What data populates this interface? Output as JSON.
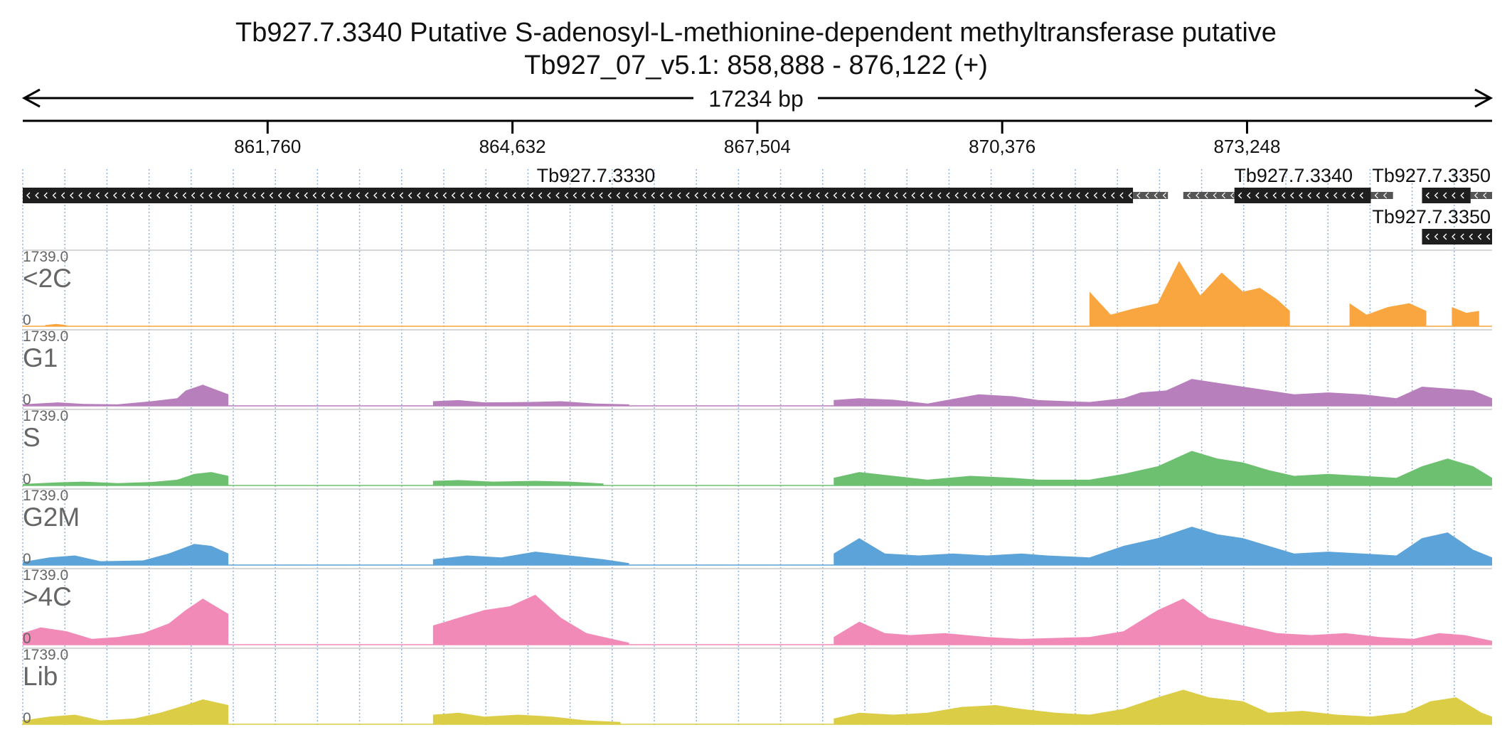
{
  "header": {
    "title": "Tb927.7.3340  Putative S-adenosyl-L-methionine-dependent methyltransferase  putative",
    "region": "Tb927_07_v5.1: 858,888 - 876,122 (+)",
    "span_label": "17234 bp"
  },
  "colors": {
    "gene_block": "#1e1e1e",
    "utr_block": "#555555",
    "grid_line": "#8fb3d9",
    "axis": "#000000"
  },
  "chart_data": {
    "type": "area",
    "region": {
      "chromosome": "Tb927_07_v5.1",
      "start": 858888,
      "end": 876122,
      "strand": "+"
    },
    "ruler_ticks": [
      {
        "pos": 861760,
        "label": "861,760"
      },
      {
        "pos": 864632,
        "label": "864,632"
      },
      {
        "pos": 867504,
        "label": "867,504"
      },
      {
        "pos": 870376,
        "label": "870,376"
      },
      {
        "pos": 873248,
        "label": "873,248"
      }
    ],
    "genes": [
      {
        "name": "Tb927.7.3330",
        "strand": "-",
        "row": 0,
        "cds": [
          858888,
          871910
        ],
        "utr": [
          [
            871910,
            872320
          ]
        ]
      },
      {
        "name": "Tb927.7.3340",
        "strand": "-",
        "row": 0,
        "cds": [
          873100,
          874700
        ],
        "utr": [
          [
            872500,
            873100
          ],
          [
            874700,
            874960
          ]
        ]
      },
      {
        "name": "Tb927.7.3350",
        "strand": "-",
        "row": 0,
        "cds": [
          875300,
          875870
        ],
        "utr": [
          [
            875870,
            876122
          ]
        ]
      },
      {
        "name": "Tb927.7.3350",
        "strand": "-",
        "row": 1,
        "cds": [
          875300,
          876122
        ],
        "utr": []
      }
    ],
    "tracks": [
      {
        "name": "<2C",
        "max": "1739.0",
        "min": "0",
        "color": "#f9a640",
        "segments": [
          [
            [
              859150,
              30
            ],
            [
              859280,
              60
            ],
            [
              859400,
              30
            ]
          ],
          [
            [
              871400,
              900
            ],
            [
              871650,
              300
            ],
            [
              871900,
              450
            ],
            [
              872200,
              600
            ],
            [
              872450,
              1700
            ],
            [
              872700,
              800
            ],
            [
              872950,
              1400
            ],
            [
              873200,
              900
            ],
            [
              873400,
              1000
            ],
            [
              873600,
              700
            ],
            [
              873750,
              400
            ]
          ],
          [
            [
              874450,
              600
            ],
            [
              874650,
              300
            ],
            [
              874900,
              500
            ],
            [
              875150,
              600
            ],
            [
              875350,
              400
            ]
          ],
          [
            [
              875650,
              500
            ],
            [
              875820,
              350
            ],
            [
              875970,
              400
            ]
          ]
        ]
      },
      {
        "name": "G1",
        "max": "1739.0",
        "min": "0",
        "color": "#b77fbc",
        "segments": [
          [
            [
              858888,
              40
            ],
            [
              859300,
              90
            ],
            [
              859600,
              50
            ],
            [
              860000,
              40
            ],
            [
              860400,
              120
            ],
            [
              860700,
              200
            ],
            [
              860800,
              400
            ],
            [
              861000,
              550
            ],
            [
              861300,
              300
            ]
          ],
          [
            [
              863700,
              120
            ],
            [
              864000,
              150
            ],
            [
              864300,
              90
            ],
            [
              864800,
              100
            ],
            [
              865200,
              120
            ],
            [
              865600,
              60
            ],
            [
              866000,
              40
            ]
          ],
          [
            [
              868400,
              150
            ],
            [
              868700,
              200
            ],
            [
              869100,
              160
            ],
            [
              869500,
              60
            ],
            [
              870100,
              300
            ],
            [
              870500,
              250
            ],
            [
              870800,
              150
            ],
            [
              871400,
              100
            ],
            [
              871800,
              200
            ],
            [
              872000,
              350
            ],
            [
              872300,
              400
            ],
            [
              872600,
              700
            ],
            [
              872900,
              600
            ],
            [
              873200,
              500
            ],
            [
              873500,
              400
            ],
            [
              873800,
              300
            ],
            [
              874200,
              350
            ],
            [
              874600,
              300
            ],
            [
              875000,
              200
            ],
            [
              875300,
              500
            ],
            [
              875600,
              450
            ],
            [
              875900,
              400
            ],
            [
              876122,
              200
            ]
          ]
        ]
      },
      {
        "name": "S",
        "max": "1739.0",
        "min": "0",
        "color": "#6ec071",
        "segments": [
          [
            [
              858888,
              40
            ],
            [
              859300,
              80
            ],
            [
              859600,
              100
            ],
            [
              860000,
              60
            ],
            [
              860400,
              90
            ],
            [
              860700,
              150
            ],
            [
              860900,
              300
            ],
            [
              861100,
              350
            ],
            [
              861300,
              250
            ]
          ],
          [
            [
              863700,
              120
            ],
            [
              864000,
              140
            ],
            [
              864400,
              100
            ],
            [
              864900,
              120
            ],
            [
              865300,
              100
            ],
            [
              865700,
              50
            ]
          ],
          [
            [
              868400,
              200
            ],
            [
              868700,
              350
            ],
            [
              869100,
              250
            ],
            [
              869500,
              150
            ],
            [
              870000,
              250
            ],
            [
              870500,
              200
            ],
            [
              870800,
              150
            ],
            [
              871400,
              150
            ],
            [
              871800,
              300
            ],
            [
              872200,
              500
            ],
            [
              872600,
              900
            ],
            [
              872900,
              700
            ],
            [
              873200,
              600
            ],
            [
              873500,
              400
            ],
            [
              873800,
              250
            ],
            [
              874200,
              300
            ],
            [
              874600,
              250
            ],
            [
              875000,
              200
            ],
            [
              875300,
              500
            ],
            [
              875600,
              700
            ],
            [
              875900,
              500
            ],
            [
              876122,
              200
            ]
          ]
        ]
      },
      {
        "name": "G2M",
        "max": "1739.0",
        "min": "0",
        "color": "#5ba3d8",
        "segments": [
          [
            [
              858888,
              80
            ],
            [
              859200,
              200
            ],
            [
              859500,
              250
            ],
            [
              859800,
              100
            ],
            [
              860300,
              120
            ],
            [
              860600,
              300
            ],
            [
              860900,
              550
            ],
            [
              861100,
              500
            ],
            [
              861300,
              300
            ]
          ],
          [
            [
              863700,
              150
            ],
            [
              864100,
              250
            ],
            [
              864500,
              200
            ],
            [
              864900,
              350
            ],
            [
              865300,
              250
            ],
            [
              865700,
              150
            ],
            [
              866000,
              50
            ]
          ],
          [
            [
              868400,
              300
            ],
            [
              868700,
              700
            ],
            [
              869000,
              300
            ],
            [
              869400,
              250
            ],
            [
              869800,
              300
            ],
            [
              870200,
              250
            ],
            [
              870600,
              300
            ],
            [
              870900,
              250
            ],
            [
              871400,
              200
            ],
            [
              871800,
              500
            ],
            [
              872200,
              700
            ],
            [
              872600,
              1000
            ],
            [
              872900,
              800
            ],
            [
              873200,
              700
            ],
            [
              873500,
              500
            ],
            [
              873800,
              300
            ],
            [
              874200,
              350
            ],
            [
              874600,
              300
            ],
            [
              875000,
              250
            ],
            [
              875300,
              700
            ],
            [
              875600,
              850
            ],
            [
              875900,
              400
            ],
            [
              876122,
              200
            ]
          ]
        ]
      },
      {
        "name": ">4C",
        "max": "1739.0",
        "min": "0",
        "color": "#f28ab8",
        "segments": [
          [
            [
              858888,
              300
            ],
            [
              859100,
              450
            ],
            [
              859400,
              350
            ],
            [
              859700,
              150
            ],
            [
              860000,
              200
            ],
            [
              860300,
              300
            ],
            [
              860600,
              550
            ],
            [
              860800,
              900
            ],
            [
              861000,
              1200
            ],
            [
              861300,
              800
            ]
          ],
          [
            [
              863700,
              500
            ],
            [
              864000,
              700
            ],
            [
              864300,
              900
            ],
            [
              864600,
              1000
            ],
            [
              864900,
              1300
            ],
            [
              865200,
              700
            ],
            [
              865500,
              300
            ],
            [
              865800,
              150
            ],
            [
              866000,
              50
            ]
          ],
          [
            [
              868400,
              200
            ],
            [
              868700,
              600
            ],
            [
              869000,
              300
            ],
            [
              869300,
              250
            ],
            [
              869700,
              300
            ],
            [
              870200,
              200
            ],
            [
              870600,
              150
            ],
            [
              871400,
              200
            ],
            [
              871800,
              350
            ],
            [
              872200,
              900
            ],
            [
              872500,
              1200
            ],
            [
              872800,
              700
            ],
            [
              873200,
              500
            ],
            [
              873600,
              300
            ],
            [
              874000,
              250
            ],
            [
              874400,
              300
            ],
            [
              874800,
              200
            ],
            [
              875200,
              150
            ],
            [
              875500,
              300
            ],
            [
              875800,
              250
            ],
            [
              876122,
              100
            ]
          ]
        ]
      },
      {
        "name": "Lib",
        "max": "1739.0",
        "min": "0",
        "color": "#dccd46",
        "segments": [
          [
            [
              858888,
              100
            ],
            [
              859200,
              200
            ],
            [
              859500,
              250
            ],
            [
              859800,
              100
            ],
            [
              860200,
              150
            ],
            [
              860500,
              300
            ],
            [
              860800,
              500
            ],
            [
              861000,
              650
            ],
            [
              861300,
              500
            ]
          ],
          [
            [
              863700,
              250
            ],
            [
              864000,
              300
            ],
            [
              864300,
              200
            ],
            [
              864700,
              250
            ],
            [
              865100,
              200
            ],
            [
              865500,
              100
            ],
            [
              865900,
              60
            ]
          ],
          [
            [
              868400,
              150
            ],
            [
              868700,
              300
            ],
            [
              869100,
              250
            ],
            [
              869500,
              300
            ],
            [
              869900,
              450
            ],
            [
              870300,
              500
            ],
            [
              870600,
              400
            ],
            [
              871000,
              300
            ],
            [
              871400,
              250
            ],
            [
              871800,
              400
            ],
            [
              872200,
              700
            ],
            [
              872500,
              900
            ],
            [
              872800,
              700
            ],
            [
              873200,
              600
            ],
            [
              873500,
              300
            ],
            [
              873900,
              350
            ],
            [
              874300,
              250
            ],
            [
              874700,
              200
            ],
            [
              875100,
              300
            ],
            [
              875400,
              600
            ],
            [
              875700,
              700
            ],
            [
              876000,
              300
            ],
            [
              876122,
              200
            ]
          ]
        ]
      }
    ]
  }
}
